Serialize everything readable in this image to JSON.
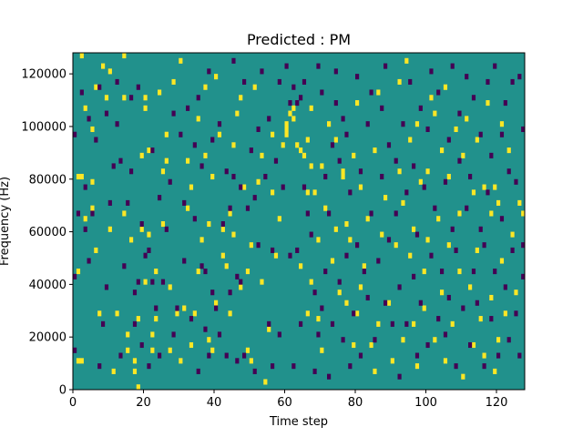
{
  "chart_data": {
    "type": "heatmap",
    "title": "Predicted : PM",
    "xlabel": "Time step",
    "ylabel": "Frequency (Hz)",
    "xlim": [
      0,
      128
    ],
    "ylim": [
      0,
      128000
    ],
    "x_ticks": [
      0,
      20,
      40,
      60,
      80,
      100,
      120
    ],
    "y_ticks": [
      0,
      20000,
      40000,
      60000,
      80000,
      100000,
      120000
    ],
    "x_tick_labels": [
      "0",
      "20",
      "40",
      "60",
      "80",
      "100",
      "120"
    ],
    "y_tick_labels": [
      "0",
      "20000",
      "40000",
      "60000",
      "80000",
      "100000",
      "120000"
    ],
    "n_time_steps": 128,
    "n_freq_bins": 64,
    "colors": {
      "background": "#21918c",
      "high": "#fde725",
      "low": "#440154"
    },
    "grid": false,
    "high_cells": [
      [
        1,
        5
      ],
      [
        2,
        5
      ],
      [
        1,
        22
      ],
      [
        1,
        40
      ],
      [
        2,
        40
      ],
      [
        2,
        63
      ],
      [
        3,
        32
      ],
      [
        3,
        53
      ],
      [
        5,
        34
      ],
      [
        5,
        39
      ],
      [
        5,
        49
      ],
      [
        6,
        26
      ],
      [
        6,
        57
      ],
      [
        7,
        14
      ],
      [
        8,
        61
      ],
      [
        9,
        55
      ],
      [
        10,
        30
      ],
      [
        10,
        60
      ],
      [
        11,
        3
      ],
      [
        12,
        14
      ],
      [
        14,
        33
      ],
      [
        14,
        55
      ],
      [
        14,
        63
      ],
      [
        15,
        7
      ],
      [
        15,
        10
      ],
      [
        16,
        28
      ],
      [
        17,
        5
      ],
      [
        17,
        3
      ],
      [
        18,
        0
      ],
      [
        18,
        13
      ],
      [
        19,
        30
      ],
      [
        19,
        44
      ],
      [
        20,
        20
      ],
      [
        20,
        55
      ],
      [
        20,
        53
      ],
      [
        21,
        45
      ],
      [
        21,
        29
      ],
      [
        22,
        10
      ],
      [
        22,
        7
      ],
      [
        23,
        13
      ],
      [
        23,
        22
      ],
      [
        24,
        56
      ],
      [
        25,
        41
      ],
      [
        25,
        31
      ],
      [
        26,
        43
      ],
      [
        26,
        48
      ],
      [
        27,
        7
      ],
      [
        27,
        19
      ],
      [
        28,
        58
      ],
      [
        29,
        14
      ],
      [
        30,
        5
      ],
      [
        30,
        62
      ],
      [
        31,
        15
      ],
      [
        32,
        43
      ],
      [
        32,
        34
      ],
      [
        33,
        8
      ],
      [
        33,
        38
      ],
      [
        34,
        14
      ],
      [
        35,
        22
      ],
      [
        35,
        51
      ],
      [
        36,
        28
      ],
      [
        37,
        44
      ],
      [
        37,
        57
      ],
      [
        38,
        9
      ],
      [
        38,
        31
      ],
      [
        39,
        7
      ],
      [
        39,
        40
      ],
      [
        40,
        16
      ],
      [
        40,
        59
      ],
      [
        41,
        48
      ],
      [
        42,
        30
      ],
      [
        42,
        25
      ],
      [
        43,
        23
      ],
      [
        44,
        14
      ],
      [
        44,
        33
      ],
      [
        45,
        46
      ],
      [
        45,
        29
      ],
      [
        46,
        52
      ],
      [
        47,
        19
      ],
      [
        47,
        55
      ],
      [
        48,
        38
      ],
      [
        49,
        7
      ],
      [
        49,
        22
      ],
      [
        50,
        5
      ],
      [
        50,
        27
      ],
      [
        51,
        57
      ],
      [
        52,
        39
      ],
      [
        53,
        44
      ],
      [
        53,
        20
      ],
      [
        54,
        1
      ],
      [
        55,
        11
      ],
      [
        56,
        37
      ],
      [
        56,
        48
      ],
      [
        57,
        25
      ],
      [
        58,
        32
      ],
      [
        59,
        46
      ],
      [
        60,
        48
      ],
      [
        60,
        49
      ],
      [
        60,
        50
      ],
      [
        61,
        52
      ],
      [
        62,
        51
      ],
      [
        62,
        53
      ],
      [
        63,
        46
      ],
      [
        64,
        45
      ],
      [
        64,
        23
      ],
      [
        65,
        44
      ],
      [
        66,
        14
      ],
      [
        66,
        37
      ],
      [
        66,
        47
      ],
      [
        67,
        20
      ],
      [
        67,
        42
      ],
      [
        67,
        53
      ],
      [
        68,
        37
      ],
      [
        69,
        13
      ],
      [
        69,
        28
      ],
      [
        70,
        7
      ],
      [
        70,
        42
      ],
      [
        71,
        34
      ],
      [
        72,
        50
      ],
      [
        73,
        24
      ],
      [
        74,
        30
      ],
      [
        74,
        47
      ],
      [
        75,
        18
      ],
      [
        76,
        40
      ],
      [
        76,
        41
      ],
      [
        77,
        16
      ],
      [
        77,
        31
      ],
      [
        78,
        28
      ],
      [
        79,
        8
      ],
      [
        79,
        44
      ],
      [
        80,
        14
      ],
      [
        80,
        54
      ],
      [
        81,
        19
      ],
      [
        81,
        38
      ],
      [
        82,
        23
      ],
      [
        83,
        32
      ],
      [
        84,
        8
      ],
      [
        85,
        3
      ],
      [
        85,
        45
      ],
      [
        86,
        12
      ],
      [
        86,
        56
      ],
      [
        87,
        29
      ],
      [
        88,
        36
      ],
      [
        89,
        16
      ],
      [
        90,
        5
      ],
      [
        91,
        27
      ],
      [
        92,
        41
      ],
      [
        92,
        58
      ],
      [
        93,
        9
      ],
      [
        93,
        35
      ],
      [
        94,
        62
      ],
      [
        95,
        25
      ],
      [
        95,
        47
      ],
      [
        96,
        12
      ],
      [
        96,
        30
      ],
      [
        97,
        4
      ],
      [
        97,
        50
      ],
      [
        98,
        39
      ],
      [
        99,
        15
      ],
      [
        99,
        22
      ],
      [
        100,
        28
      ],
      [
        100,
        41
      ],
      [
        101,
        55
      ],
      [
        102,
        9
      ],
      [
        102,
        52
      ],
      [
        103,
        32
      ],
      [
        104,
        18
      ],
      [
        104,
        45
      ],
      [
        105,
        5
      ],
      [
        105,
        57
      ],
      [
        106,
        27
      ],
      [
        106,
        40
      ],
      [
        107,
        12
      ],
      [
        108,
        49
      ],
      [
        109,
        22
      ],
      [
        109,
        33
      ],
      [
        110,
        2
      ],
      [
        110,
        44
      ],
      [
        111,
        51
      ],
      [
        112,
        19
      ],
      [
        113,
        8
      ],
      [
        113,
        37
      ],
      [
        114,
        26
      ],
      [
        114,
        47
      ],
      [
        115,
        13
      ],
      [
        116,
        6
      ],
      [
        116,
        38
      ],
      [
        117,
        54
      ],
      [
        118,
        33
      ],
      [
        118,
        17
      ],
      [
        119,
        38
      ],
      [
        119,
        3
      ],
      [
        120,
        9
      ],
      [
        120,
        35
      ],
      [
        121,
        24
      ],
      [
        121,
        50
      ],
      [
        122,
        14
      ],
      [
        123,
        45
      ],
      [
        124,
        29
      ],
      [
        125,
        18
      ],
      [
        126,
        35
      ],
      [
        127,
        33
      ]
    ],
    "low_cells": [
      [
        0,
        7
      ],
      [
        0,
        21
      ],
      [
        0,
        48
      ],
      [
        1,
        33
      ],
      [
        2,
        56
      ],
      [
        3,
        38
      ],
      [
        3,
        30
      ],
      [
        4,
        51
      ],
      [
        4,
        24
      ],
      [
        5,
        33
      ],
      [
        6,
        47
      ],
      [
        7,
        57
      ],
      [
        7,
        4
      ],
      [
        8,
        12
      ],
      [
        9,
        19
      ],
      [
        9,
        52
      ],
      [
        10,
        35
      ],
      [
        11,
        42
      ],
      [
        12,
        50
      ],
      [
        12,
        58
      ],
      [
        13,
        6
      ],
      [
        13,
        43
      ],
      [
        14,
        23
      ],
      [
        15,
        35
      ],
      [
        16,
        55
      ],
      [
        16,
        41
      ],
      [
        17,
        18
      ],
      [
        17,
        12
      ],
      [
        18,
        57
      ],
      [
        18,
        20
      ],
      [
        19,
        31
      ],
      [
        19,
        8
      ],
      [
        20,
        25
      ],
      [
        21,
        4
      ],
      [
        21,
        26
      ],
      [
        22,
        20
      ],
      [
        22,
        45
      ],
      [
        23,
        15
      ],
      [
        24,
        36
      ],
      [
        24,
        6
      ],
      [
        25,
        20
      ],
      [
        26,
        30
      ],
      [
        27,
        39
      ],
      [
        28,
        52
      ],
      [
        28,
        10
      ],
      [
        29,
        15
      ],
      [
        30,
        48
      ],
      [
        31,
        24
      ],
      [
        31,
        35
      ],
      [
        32,
        53
      ],
      [
        33,
        13
      ],
      [
        34,
        32
      ],
      [
        34,
        46
      ],
      [
        35,
        3
      ],
      [
        35,
        55
      ],
      [
        36,
        42
      ],
      [
        36,
        23
      ],
      [
        37,
        11
      ],
      [
        37,
        22
      ],
      [
        38,
        6
      ],
      [
        38,
        60
      ],
      [
        39,
        18
      ],
      [
        39,
        47
      ],
      [
        40,
        15
      ],
      [
        41,
        50
      ],
      [
        41,
        10
      ],
      [
        42,
        31
      ],
      [
        43,
        6
      ],
      [
        43,
        41
      ],
      [
        44,
        18
      ],
      [
        44,
        34
      ],
      [
        45,
        62
      ],
      [
        45,
        40
      ],
      [
        46,
        5
      ],
      [
        46,
        21
      ],
      [
        47,
        20
      ],
      [
        47,
        38
      ],
      [
        48,
        58
      ],
      [
        48,
        6
      ],
      [
        49,
        34
      ],
      [
        50,
        45
      ],
      [
        51,
        3
      ],
      [
        51,
        36
      ],
      [
        52,
        49
      ],
      [
        52,
        27
      ],
      [
        53,
        60
      ],
      [
        54,
        40
      ],
      [
        55,
        51
      ],
      [
        55,
        12
      ],
      [
        56,
        4
      ],
      [
        56,
        26
      ],
      [
        57,
        43
      ],
      [
        58,
        58
      ],
      [
        58,
        10
      ],
      [
        59,
        38
      ],
      [
        60,
        61
      ],
      [
        61,
        25
      ],
      [
        61,
        54
      ],
      [
        62,
        57
      ],
      [
        62,
        4
      ],
      [
        63,
        26
      ],
      [
        63,
        54
      ],
      [
        64,
        12
      ],
      [
        64,
        55
      ],
      [
        65,
        38
      ],
      [
        65,
        58
      ],
      [
        66,
        33
      ],
      [
        67,
        29
      ],
      [
        68,
        3
      ],
      [
        68,
        18
      ],
      [
        69,
        10
      ],
      [
        69,
        61
      ],
      [
        70,
        15
      ],
      [
        70,
        56
      ],
      [
        71,
        40
      ],
      [
        71,
        22
      ],
      [
        72,
        2
      ],
      [
        72,
        33
      ],
      [
        73,
        12
      ],
      [
        73,
        46
      ],
      [
        74,
        60
      ],
      [
        74,
        54
      ],
      [
        75,
        20
      ],
      [
        75,
        43
      ],
      [
        76,
        9
      ],
      [
        76,
        51
      ],
      [
        77,
        25
      ],
      [
        77,
        48
      ],
      [
        78,
        4
      ],
      [
        78,
        37
      ],
      [
        79,
        14
      ],
      [
        80,
        27
      ],
      [
        80,
        59
      ],
      [
        81,
        41
      ],
      [
        81,
        6
      ],
      [
        82,
        22
      ],
      [
        83,
        17
      ],
      [
        83,
        50
      ],
      [
        84,
        33
      ],
      [
        84,
        56
      ],
      [
        85,
        9
      ],
      [
        86,
        24
      ],
      [
        87,
        40
      ],
      [
        87,
        53
      ],
      [
        88,
        16
      ],
      [
        88,
        61
      ],
      [
        89,
        28
      ],
      [
        89,
        46
      ],
      [
        90,
        12
      ],
      [
        91,
        33
      ],
      [
        91,
        43
      ],
      [
        92,
        2
      ],
      [
        92,
        19
      ],
      [
        93,
        50
      ],
      [
        94,
        12
      ],
      [
        94,
        37
      ],
      [
        95,
        58
      ],
      [
        96,
        42
      ],
      [
        96,
        21
      ],
      [
        97,
        6
      ],
      [
        97,
        29
      ],
      [
        98,
        53
      ],
      [
        98,
        16
      ],
      [
        99,
        38
      ],
      [
        100,
        8
      ],
      [
        100,
        49
      ],
      [
        101,
        25
      ],
      [
        101,
        60
      ],
      [
        102,
        34
      ],
      [
        103,
        13
      ],
      [
        103,
        56
      ],
      [
        104,
        22
      ],
      [
        105,
        10
      ],
      [
        105,
        39
      ],
      [
        106,
        47
      ],
      [
        106,
        17
      ],
      [
        107,
        30
      ],
      [
        107,
        61
      ],
      [
        108,
        4
      ],
      [
        108,
        26
      ],
      [
        109,
        52
      ],
      [
        109,
        43
      ],
      [
        110,
        15
      ],
      [
        111,
        34
      ],
      [
        111,
        59
      ],
      [
        112,
        8
      ],
      [
        112,
        40
      ],
      [
        113,
        22
      ],
      [
        113,
        55
      ],
      [
        114,
        16
      ],
      [
        115,
        30
      ],
      [
        115,
        48
      ],
      [
        116,
        4
      ],
      [
        116,
        27
      ],
      [
        117,
        58
      ],
      [
        117,
        37
      ],
      [
        118,
        13
      ],
      [
        118,
        44
      ],
      [
        119,
        22
      ],
      [
        119,
        61
      ],
      [
        120,
        6
      ],
      [
        121,
        32
      ],
      [
        121,
        48
      ],
      [
        122,
        19
      ],
      [
        122,
        54
      ],
      [
        123,
        9
      ],
      [
        123,
        41
      ],
      [
        124,
        26
      ],
      [
        124,
        58
      ],
      [
        125,
        14
      ],
      [
        125,
        39
      ],
      [
        126,
        59
      ],
      [
        126,
        6
      ],
      [
        127,
        27
      ],
      [
        127,
        49
      ],
      [
        127,
        21
      ]
    ]
  }
}
